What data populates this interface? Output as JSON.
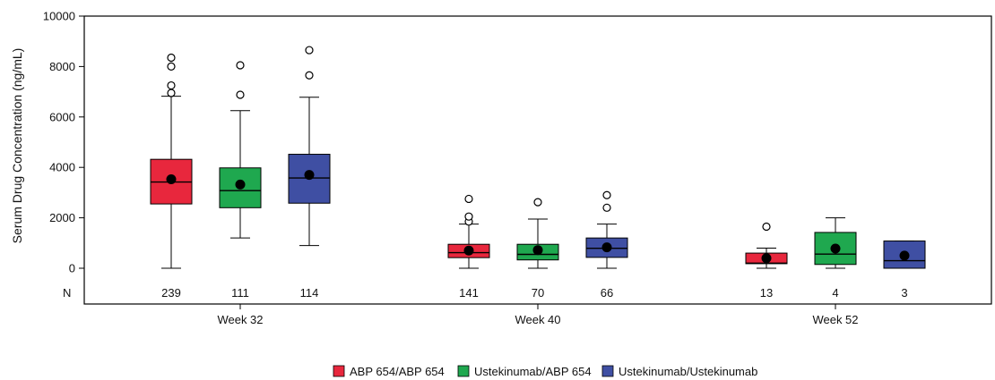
{
  "chart_data": {
    "type": "boxplot",
    "ylabel": "Serum Drug Concentration (ng/mL)",
    "ylim": [
      0,
      10000
    ],
    "yticks": [
      0,
      2000,
      4000,
      6000,
      8000,
      10000
    ],
    "n_row_label": "N",
    "groups": [
      "Week 32",
      "Week 40",
      "Week 52"
    ],
    "series": [
      {
        "name": "ABP 654/ABP 654",
        "color": "#e8273d",
        "data": [
          {
            "group": "Week 32",
            "n": "239",
            "min": 0,
            "q1": 2550,
            "median": 3420,
            "q3": 4320,
            "max": 6820,
            "mean": 3530,
            "outliers": [
              6950,
              7250,
              8000,
              8350
            ]
          },
          {
            "group": "Week 40",
            "n": "141",
            "min": 0,
            "q1": 420,
            "median": 620,
            "q3": 950,
            "max": 1750,
            "mean": 700,
            "outliers": [
              1850,
              2050,
              2750
            ]
          },
          {
            "group": "Week 52",
            "n": "13",
            "min": 0,
            "q1": 180,
            "median": 200,
            "q3": 600,
            "max": 800,
            "mean": 400,
            "outliers": [
              1650
            ]
          }
        ]
      },
      {
        "name": "Ustekinumab/ABP 654",
        "color": "#1fa84f",
        "data": [
          {
            "group": "Week 32",
            "n": "111",
            "min": 1200,
            "q1": 2400,
            "median": 3080,
            "q3": 3980,
            "max": 6250,
            "mean": 3320,
            "outliers": [
              6880,
              8050
            ]
          },
          {
            "group": "Week 40",
            "n": "70",
            "min": 0,
            "q1": 330,
            "median": 550,
            "q3": 950,
            "max": 1950,
            "mean": 720,
            "outliers": [
              2620
            ]
          },
          {
            "group": "Week 52",
            "n": "4",
            "min": 0,
            "q1": 150,
            "median": 560,
            "q3": 1420,
            "max": 2000,
            "mean": 780,
            "outliers": []
          }
        ]
      },
      {
        "name": "Ustekinumab/Ustekinumab",
        "color": "#3f4fa3",
        "data": [
          {
            "group": "Week 32",
            "n": "114",
            "min": 900,
            "q1": 2580,
            "median": 3580,
            "q3": 4520,
            "max": 6780,
            "mean": 3700,
            "outliers": [
              7650,
              8650
            ]
          },
          {
            "group": "Week 40",
            "n": "66",
            "min": 0,
            "q1": 430,
            "median": 790,
            "q3": 1200,
            "max": 1750,
            "mean": 830,
            "outliers": [
              2400,
              2900
            ]
          },
          {
            "group": "Week 52",
            "n": "3",
            "min": 0,
            "q1": 0,
            "median": 300,
            "q3": 1080,
            "max": 1080,
            "mean": 500,
            "outliers": []
          }
        ]
      }
    ],
    "legend": {
      "position": "bottom-center"
    },
    "grid": false
  }
}
